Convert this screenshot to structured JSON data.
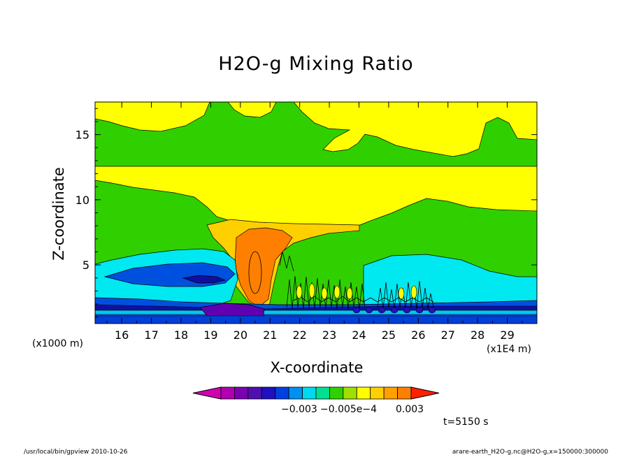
{
  "chart_data": {
    "type": "heatmap",
    "title": "H2O-g Mixing Ratio",
    "xlabel": "X-coordinate",
    "ylabel": "Z-coordinate",
    "x_unit_label": "(x1000 m)",
    "x_scale_label": "(x1E4 m)",
    "x_ticks": [
      "16",
      "17",
      "18",
      "19",
      "20",
      "21",
      "22",
      "23",
      "24",
      "25",
      "26",
      "27",
      "28",
      "29"
    ],
    "y_ticks": [
      "5",
      "10",
      "15"
    ],
    "xlim": [
      15.1,
      30.0
    ],
    "ylim": [
      0.5,
      17.5
    ],
    "colorbar": {
      "colors": [
        "#d000b0",
        "#b000b0",
        "#7a00b0",
        "#5010b0",
        "#2010c0",
        "#0040e0",
        "#0090f0",
        "#00d8f0",
        "#00e090",
        "#30d000",
        "#a0e000",
        "#ffff00",
        "#ffd000",
        "#ffa000",
        "#ff8000",
        "#ff2000"
      ],
      "tick_labels": [
        "−0.003",
        "−0.005e−4",
        "0.003"
      ]
    },
    "time_label": "t=5150 s",
    "regions": [
      {
        "level": "green",
        "color": "#30d000"
      },
      {
        "level": "yellow",
        "color": "#ffff00"
      },
      {
        "level": "light-yellow-orange",
        "color": "#ffd000"
      },
      {
        "level": "orange",
        "color": "#ff8000"
      },
      {
        "level": "cyan",
        "color": "#00e8f0"
      },
      {
        "level": "blue",
        "color": "#0050e0"
      },
      {
        "level": "dark-blue",
        "color": "#1010a0"
      },
      {
        "level": "purple",
        "color": "#6000b0"
      }
    ]
  },
  "footer": {
    "left": "/usr/local/bin/gpview   2010-10-26",
    "right": "arare-earth_H2O-g.nc@H2O-g,x=150000:300000"
  }
}
